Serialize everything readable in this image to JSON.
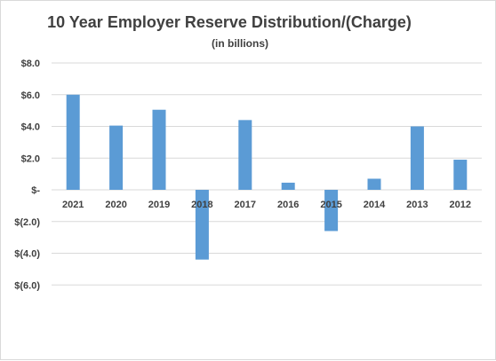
{
  "chart_data": {
    "type": "bar",
    "title": "10 Year Employer Reserve Distribution/(Charge)",
    "subtitle": "(in billions)",
    "categories": [
      "2021",
      "2020",
      "2019",
      "2018",
      "2017",
      "2016",
      "2015",
      "2014",
      "2013",
      "2012"
    ],
    "values": [
      6.0,
      4.05,
      5.05,
      -4.4,
      4.4,
      0.45,
      -2.6,
      0.7,
      4.0,
      1.9
    ],
    "ylim": [
      -6.0,
      8.0
    ],
    "yticks": [
      8.0,
      6.0,
      4.0,
      2.0,
      0.0,
      -2.0,
      -4.0,
      -6.0
    ],
    "ytick_labels": [
      "$8.0",
      "$6.0",
      "$4.0",
      "$2.0",
      "$-",
      "$(2.0)",
      "$(4.0)",
      "$(6.0)"
    ],
    "grid": true,
    "bar_color": "#5b9bd5",
    "gridline_color": "#d9d9d9"
  }
}
